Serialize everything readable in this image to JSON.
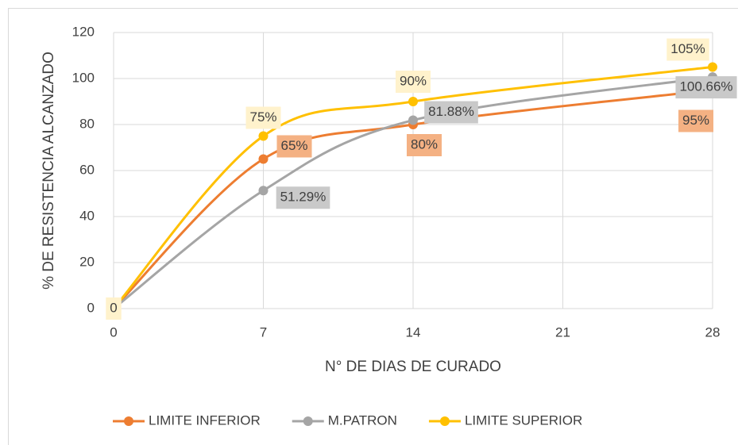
{
  "chart_data": {
    "type": "line",
    "x_label": "N° DE DIAS DE CURADO",
    "y_label": "% DE RESISTENCIA ALCANZADO",
    "x": [
      0,
      7,
      14,
      28
    ],
    "series": [
      {
        "name": "LIMITE INFERIOR",
        "color": "#ED7D31",
        "label_bg": "#F4B183",
        "values": [
          0,
          65,
          80,
          95
        ],
        "value_labels": [
          null,
          "65%",
          "80%",
          "95%"
        ]
      },
      {
        "name": "M.PATRON",
        "color": "#A5A5A5",
        "label_bg": "#C9C9C9",
        "values": [
          0,
          51.29,
          81.88,
          100.66
        ],
        "value_labels": [
          null,
          "51.29%",
          "81.88%",
          "100.66%"
        ]
      },
      {
        "name": "LIMITE SUPERIOR",
        "color": "#FFC000",
        "label_bg": "#FFF2CC",
        "values": [
          0,
          75,
          90,
          105
        ],
        "value_labels": [
          "0",
          "75%",
          "90%",
          "105%"
        ]
      }
    ],
    "xlim": [
      0,
      28
    ],
    "xticks": [
      0,
      7,
      14,
      21,
      28
    ],
    "ylim": [
      0,
      120
    ],
    "yticks": [
      0,
      20,
      40,
      60,
      80,
      100,
      120
    ],
    "grid": true,
    "legend": "bottom"
  }
}
